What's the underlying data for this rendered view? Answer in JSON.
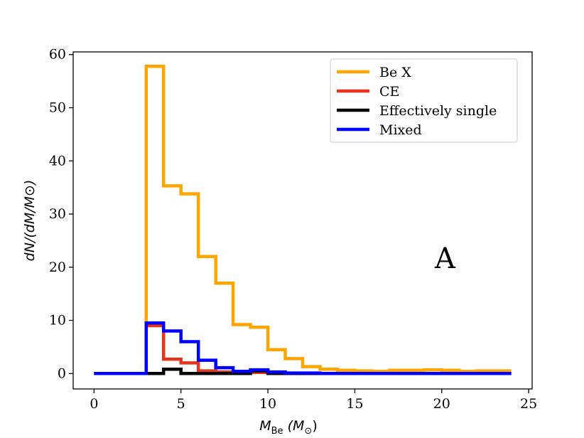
{
  "chart_data": {
    "type": "histogram-step",
    "panel_label": "A",
    "xlabel_main": "M",
    "xlabel_sub": "Be",
    "xlabel_unit": "(M",
    "xlabel_unit_sub": "⊙",
    "xlabel_close": ")",
    "ylabel": "dN/(dM/M⊙)",
    "xlim": [
      -1.2,
      25.2
    ],
    "ylim": [
      -2.9,
      60.5
    ],
    "xticks": [
      0,
      5,
      10,
      15,
      20,
      25
    ],
    "xtick_labels": [
      "0",
      "5",
      "10",
      "15",
      "20",
      "25"
    ],
    "yticks": [
      0,
      10,
      20,
      30,
      40,
      50,
      60
    ],
    "ytick_labels": [
      "0",
      "10",
      "20",
      "30",
      "40",
      "50",
      "60"
    ],
    "bin_edges": [
      0,
      1,
      2,
      3,
      4,
      5,
      6,
      7,
      8,
      9,
      10,
      11,
      12,
      13,
      14,
      15,
      16,
      17,
      18,
      19,
      20,
      21,
      22,
      23,
      24
    ],
    "legend_position": "upper-right",
    "series": [
      {
        "name": "Be X",
        "color": "#ffa500",
        "values": [
          0,
          0,
          0,
          57.8,
          35.3,
          33.8,
          22,
          17,
          9.2,
          8.7,
          4.5,
          2.8,
          1.3,
          0.8,
          0.6,
          0.5,
          0.4,
          0.6,
          0.6,
          0.7,
          0.6,
          0.4,
          0.5,
          0.5
        ]
      },
      {
        "name": "CE",
        "color": "#e8341c",
        "values": [
          0,
          0,
          0,
          9,
          2.7,
          2,
          0.5,
          0.3,
          0.2,
          0.2,
          0.1,
          0,
          0,
          0,
          0,
          0,
          0,
          0,
          0,
          0,
          0,
          0,
          0,
          0
        ]
      },
      {
        "name": "Effectively single",
        "color": "#000000",
        "values": [
          0,
          0,
          0,
          0,
          0.8,
          0,
          0,
          0,
          0,
          0.5,
          0,
          0,
          0,
          0,
          0,
          0,
          0,
          0,
          0,
          0,
          0,
          0,
          0,
          0
        ]
      },
      {
        "name": "Mixed",
        "color": "#0000ff",
        "values": [
          0,
          0,
          0,
          9.5,
          8,
          6,
          2.5,
          1.1,
          0.4,
          0.7,
          0.3,
          0.1,
          0.1,
          0,
          0,
          0,
          0,
          0,
          0,
          0,
          0,
          0,
          0,
          0
        ]
      }
    ]
  }
}
